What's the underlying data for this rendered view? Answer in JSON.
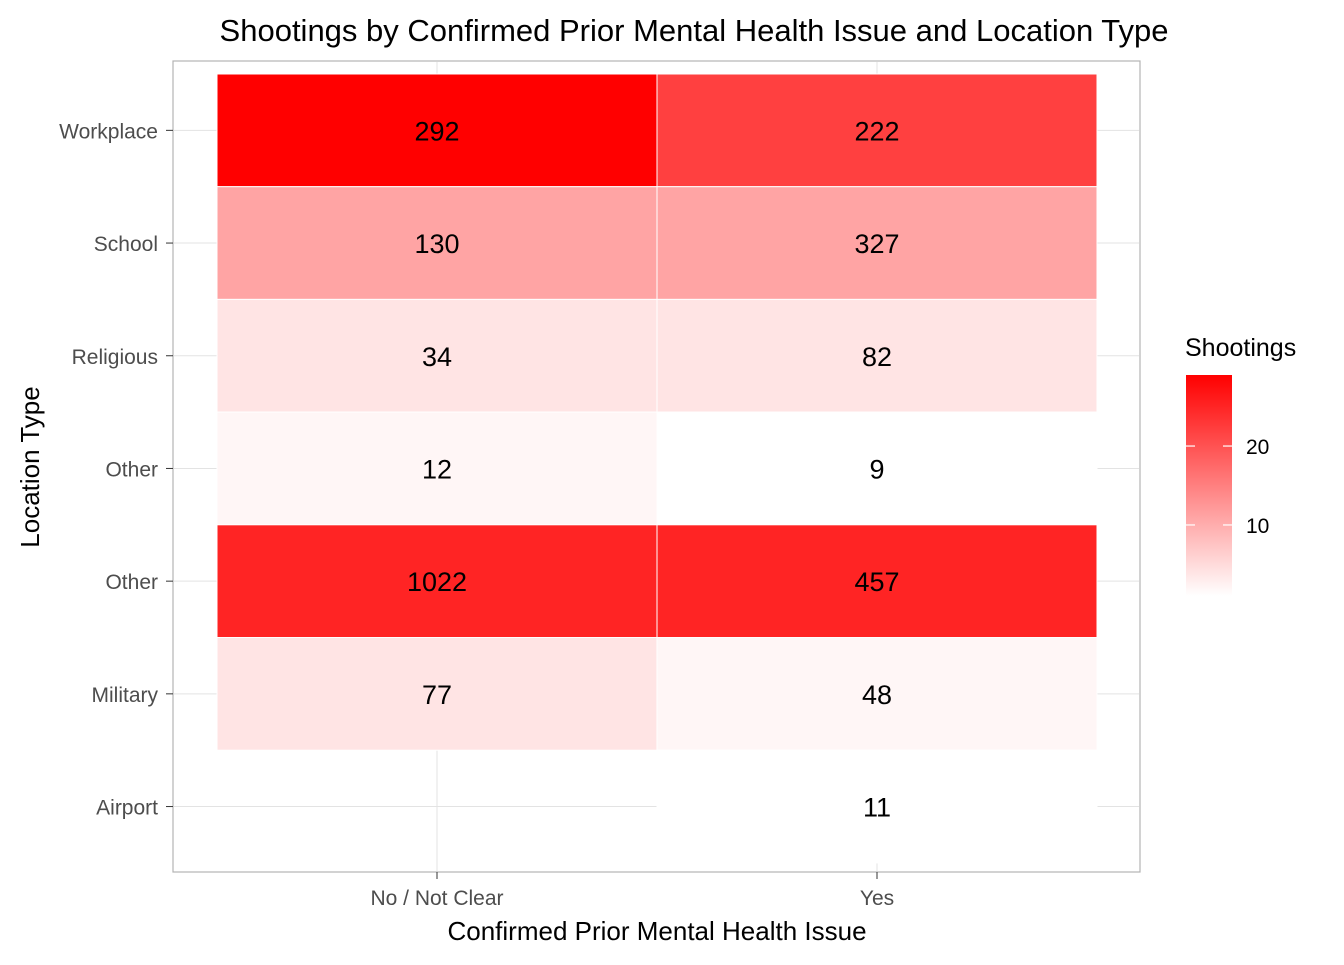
{
  "chart_data": {
    "type": "heatmap",
    "title": "Shootings by Confirmed Prior Mental Health Issue and Location Type",
    "xlabel": "Confirmed Prior Mental Health Issue",
    "ylabel": "Location Type",
    "x_categories": [
      "No / Not Clear",
      "Yes"
    ],
    "y_categories": [
      "Workplace",
      "School",
      "Religious",
      "Other",
      "Other",
      "Military",
      "Airport"
    ],
    "cells": [
      {
        "row": 0,
        "col": 0,
        "label": "292",
        "fill_value": 29
      },
      {
        "row": 0,
        "col": 1,
        "label": "222",
        "fill_value": 22
      },
      {
        "row": 1,
        "col": 0,
        "label": "130",
        "fill_value": 11
      },
      {
        "row": 1,
        "col": 1,
        "label": "327",
        "fill_value": 11
      },
      {
        "row": 2,
        "col": 0,
        "label": "34",
        "fill_value": 4
      },
      {
        "row": 2,
        "col": 1,
        "label": "82",
        "fill_value": 4
      },
      {
        "row": 3,
        "col": 0,
        "label": "12",
        "fill_value": 2
      },
      {
        "row": 3,
        "col": 1,
        "label": "9",
        "fill_value": 1
      },
      {
        "row": 4,
        "col": 0,
        "label": "1022",
        "fill_value": 25
      },
      {
        "row": 4,
        "col": 1,
        "label": "457",
        "fill_value": 25
      },
      {
        "row": 5,
        "col": 0,
        "label": "77",
        "fill_value": 4
      },
      {
        "row": 5,
        "col": 1,
        "label": "48",
        "fill_value": 2
      },
      {
        "row": 6,
        "col": 1,
        "label": "11",
        "fill_value": 1
      }
    ],
    "legend": {
      "title": "Shootings",
      "ticks": [
        10,
        20
      ],
      "range": [
        1,
        29
      ],
      "low_color": "#ffffff",
      "high_color": "#ff0000",
      "placement": "right"
    },
    "grid": true
  }
}
